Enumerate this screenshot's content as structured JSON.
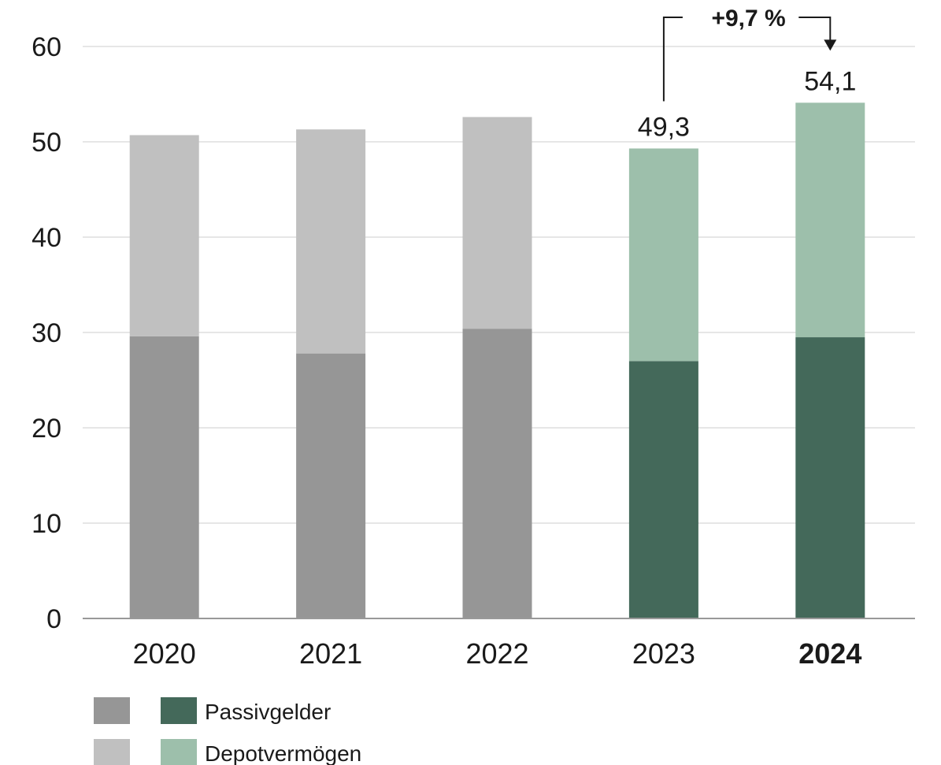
{
  "chart_data": {
    "type": "bar",
    "stacked": true,
    "title": "",
    "xlabel": "",
    "ylabel": "",
    "ylim": [
      0,
      60
    ],
    "yticks": [
      0,
      10,
      20,
      30,
      40,
      50,
      60
    ],
    "ytick_labels": [
      "0",
      "10",
      "20",
      "30",
      "40",
      "50",
      "60"
    ],
    "grid": true,
    "categories": [
      "2020",
      "2021",
      "2022",
      "2023",
      "2024"
    ],
    "highlight_category": "2024",
    "series": [
      {
        "name": "Passivgelder",
        "values": [
          29.6,
          27.8,
          30.4,
          27.0,
          29.5
        ]
      },
      {
        "name": "Depotvermögen",
        "values": [
          21.1,
          23.5,
          22.2,
          22.3,
          24.6
        ]
      }
    ],
    "data_labels": [
      {
        "category": "2023",
        "text": "49,3"
      },
      {
        "category": "2024",
        "text": "54,1"
      }
    ],
    "annotation": {
      "text": "+9,7 %",
      "from": "2023",
      "to": "2024"
    },
    "colors": {
      "passiv_past": "#969696",
      "depot_past": "#c0c0c0",
      "passiv_current": "#44695a",
      "depot_current": "#9dbfab",
      "grid": "#cccccc",
      "axis": "#999999"
    },
    "legend": {
      "placement": "bottom-left",
      "items": [
        {
          "label": "Passivgelder",
          "swatches": [
            "#969696",
            "#44695a"
          ]
        },
        {
          "label": "Depotvermögen",
          "swatches": [
            "#c0c0c0",
            "#9dbfab"
          ]
        }
      ]
    }
  }
}
